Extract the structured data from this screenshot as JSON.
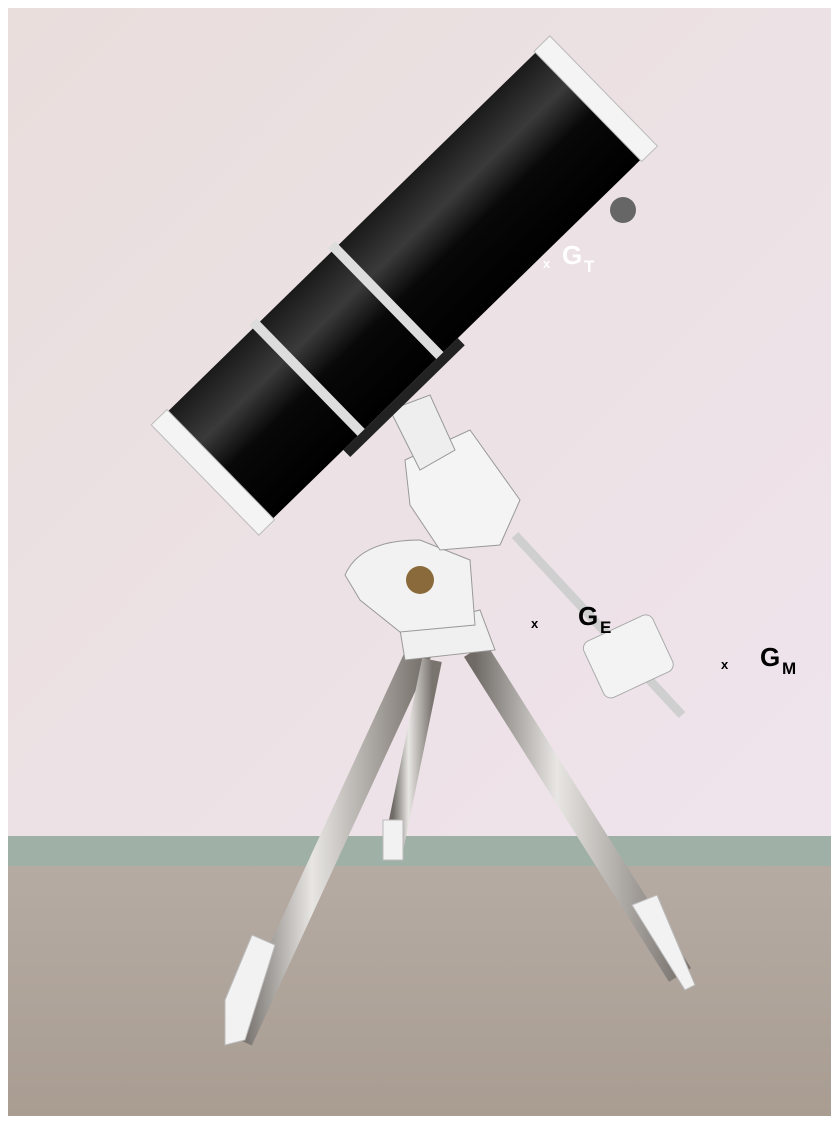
{
  "annotations": [
    {
      "marker": "x",
      "letter": "G",
      "subscript": "T"
    },
    {
      "marker": "x",
      "letter": "G",
      "subscript": "E"
    },
    {
      "marker": "x",
      "letter": "G",
      "subscript": "M"
    }
  ]
}
